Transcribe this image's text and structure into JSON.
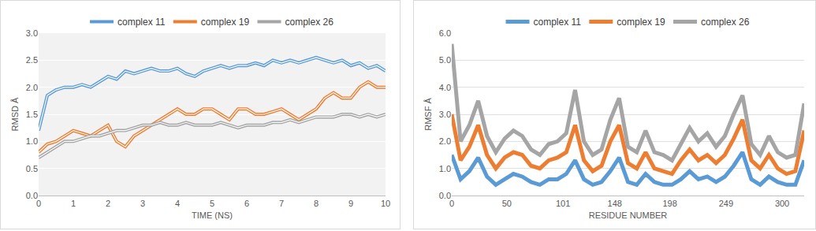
{
  "chart_data": [
    {
      "type": "line",
      "x_label": "TIME (NS)",
      "y_label": "RMSD Å",
      "x": [
        0,
        0.25,
        0.5,
        0.75,
        1,
        1.25,
        1.5,
        1.75,
        2,
        2.25,
        2.5,
        2.75,
        3,
        3.25,
        3.5,
        3.75,
        4,
        4.25,
        4.5,
        4.75,
        5,
        5.25,
        5.5,
        5.75,
        6,
        6.25,
        6.5,
        6.75,
        7,
        7.25,
        7.5,
        7.75,
        8,
        8.25,
        8.5,
        8.75,
        9,
        9.25,
        9.5,
        9.75,
        10
      ],
      "series": [
        {
          "name": "complex 11",
          "color": "#5b9bd5",
          "line_style": "double",
          "values": [
            1.2,
            1.85,
            1.95,
            2.0,
            2.0,
            2.05,
            2.0,
            2.1,
            2.2,
            2.15,
            2.3,
            2.25,
            2.3,
            2.35,
            2.3,
            2.3,
            2.35,
            2.25,
            2.2,
            2.3,
            2.35,
            2.4,
            2.35,
            2.4,
            2.4,
            2.45,
            2.4,
            2.5,
            2.45,
            2.5,
            2.45,
            2.5,
            2.55,
            2.5,
            2.45,
            2.5,
            2.4,
            2.45,
            2.35,
            2.4,
            2.3
          ]
        },
        {
          "name": "complex 19",
          "color": "#ed7d31",
          "line_style": "double",
          "values": [
            0.8,
            0.95,
            1.0,
            1.1,
            1.2,
            1.15,
            1.1,
            1.2,
            1.3,
            1.0,
            0.9,
            1.1,
            1.2,
            1.3,
            1.4,
            1.5,
            1.6,
            1.5,
            1.5,
            1.6,
            1.6,
            1.5,
            1.4,
            1.6,
            1.6,
            1.5,
            1.5,
            1.55,
            1.6,
            1.5,
            1.4,
            1.5,
            1.6,
            1.8,
            1.9,
            1.8,
            1.8,
            2.0,
            2.1,
            2.0,
            2.0
          ]
        },
        {
          "name": "complex 26",
          "color": "#a5a5a5",
          "line_style": "double",
          "values": [
            0.7,
            0.8,
            0.9,
            1.0,
            1.0,
            1.05,
            1.1,
            1.1,
            1.15,
            1.2,
            1.2,
            1.25,
            1.3,
            1.3,
            1.35,
            1.3,
            1.3,
            1.35,
            1.3,
            1.3,
            1.3,
            1.35,
            1.3,
            1.25,
            1.3,
            1.3,
            1.3,
            1.35,
            1.35,
            1.4,
            1.35,
            1.4,
            1.45,
            1.45,
            1.45,
            1.5,
            1.5,
            1.45,
            1.5,
            1.45,
            1.5
          ]
        }
      ],
      "xlim": [
        0,
        10
      ],
      "xticks": [
        0,
        1,
        2,
        3,
        4,
        5,
        6,
        7,
        8,
        9,
        10
      ],
      "ylim": [
        0,
        3
      ],
      "yticks": [
        {
          "value": 0,
          "label": "0.0"
        },
        {
          "value": 0.5,
          "label": "0.5"
        },
        {
          "value": 1,
          "label": "1.0"
        },
        {
          "value": 1.5,
          "label": "1.5"
        },
        {
          "value": 2,
          "label": "2.0"
        },
        {
          "value": 2.5,
          "label": "2.5"
        },
        {
          "value": 3,
          "label": "3.0"
        }
      ],
      "grid": true,
      "legend": "top"
    },
    {
      "type": "line",
      "x_label": "RESIDUE NUMBER",
      "y_label": "RMSF Å",
      "x": [
        0,
        8,
        16,
        24,
        32,
        40,
        48,
        56,
        64,
        72,
        80,
        88,
        96,
        104,
        112,
        120,
        128,
        136,
        144,
        152,
        160,
        168,
        176,
        184,
        192,
        200,
        208,
        216,
        224,
        232,
        240,
        248,
        256,
        264,
        272,
        280,
        288,
        296,
        304,
        312,
        320
      ],
      "series": [
        {
          "name": "complex 11",
          "color": "#5b9bd5",
          "line_style": "solid",
          "values": [
            1.5,
            0.6,
            0.9,
            1.4,
            0.7,
            0.4,
            0.6,
            0.8,
            0.7,
            0.5,
            0.4,
            0.6,
            0.6,
            0.8,
            1.3,
            0.6,
            0.4,
            0.5,
            0.9,
            1.4,
            0.5,
            0.4,
            0.8,
            0.5,
            0.4,
            0.4,
            0.6,
            0.9,
            0.6,
            0.7,
            0.5,
            0.7,
            1.1,
            1.6,
            0.6,
            0.4,
            0.7,
            0.5,
            0.4,
            0.4,
            1.3
          ]
        },
        {
          "name": "complex 19",
          "color": "#ed7d31",
          "line_style": "solid",
          "values": [
            3.0,
            1.3,
            1.8,
            2.6,
            1.5,
            1.0,
            1.4,
            1.6,
            1.5,
            1.1,
            1.0,
            1.3,
            1.4,
            1.6,
            2.6,
            1.3,
            0.9,
            1.1,
            2.0,
            2.6,
            1.2,
            1.0,
            1.6,
            1.0,
            0.9,
            0.8,
            1.3,
            1.7,
            1.3,
            1.5,
            1.2,
            1.5,
            2.1,
            2.8,
            1.3,
            1.0,
            1.5,
            1.0,
            0.8,
            0.9,
            2.4
          ]
        },
        {
          "name": "complex 26",
          "color": "#a5a5a5",
          "line_style": "solid",
          "values": [
            5.6,
            2.0,
            2.6,
            3.5,
            2.2,
            1.6,
            2.1,
            2.4,
            2.2,
            1.7,
            1.5,
            1.9,
            2.0,
            2.3,
            3.9,
            2.0,
            1.5,
            1.7,
            2.8,
            3.6,
            1.8,
            1.6,
            2.4,
            1.6,
            1.5,
            1.3,
            1.9,
            2.5,
            2.0,
            2.3,
            1.8,
            2.2,
            3.0,
            3.7,
            1.9,
            1.5,
            2.2,
            1.6,
            1.4,
            1.5,
            3.4
          ]
        }
      ],
      "xlim": [
        0,
        320
      ],
      "xticks": [
        0,
        50,
        101,
        148,
        198,
        249,
        300
      ],
      "ylim": [
        0,
        6
      ],
      "yticks": [
        {
          "value": 0,
          "label": "0.0"
        },
        {
          "value": 1,
          "label": "1.0"
        },
        {
          "value": 2,
          "label": "2.0"
        },
        {
          "value": 3,
          "label": "3.0"
        },
        {
          "value": 4,
          "label": "4.0"
        },
        {
          "value": 5,
          "label": "5.0"
        },
        {
          "value": 6,
          "label": "6.0"
        }
      ],
      "grid": true,
      "legend": "top"
    }
  ]
}
